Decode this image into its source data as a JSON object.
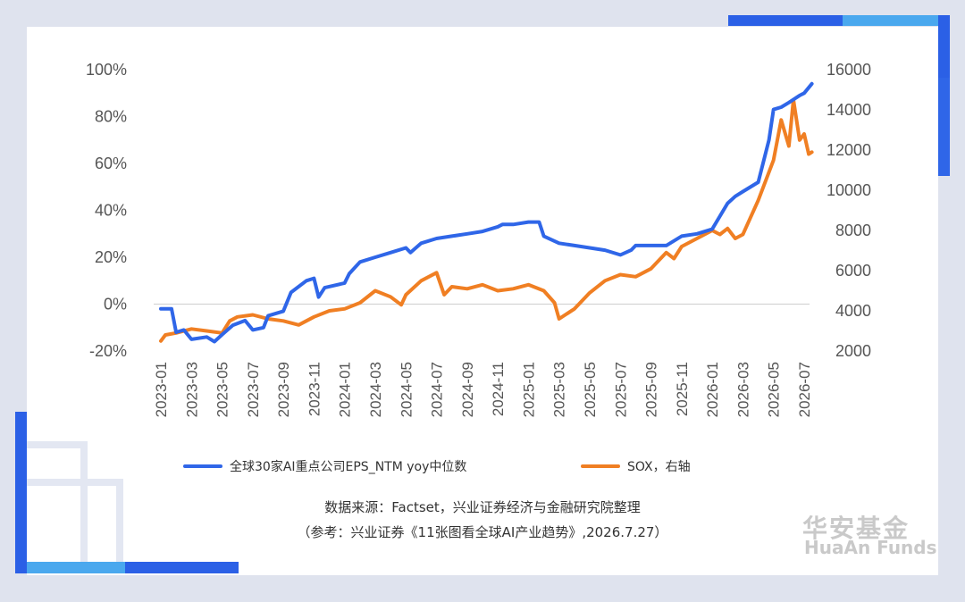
{
  "legend": {
    "series1": "全球30家AI重点公司EPS_NTM yoy中位数",
    "series2": "SOX，右轴"
  },
  "source": {
    "line1": "数据来源：Factset，兴业证券经济与金融研究院整理",
    "line2": "（参考：兴业证券《11张图看全球AI产业趋势》,2026.7.27）"
  },
  "brand": {
    "cn": "华安基金",
    "en": "HuaAn Funds"
  },
  "colors": {
    "series1": "#2f66e8",
    "series2": "#f07f23",
    "accent_dark": "#2b60e6",
    "accent_light": "#4aa8ee"
  },
  "chart_data": {
    "type": "line",
    "x_ticks": [
      "2023-01",
      "2023-03",
      "2023-05",
      "2023-07",
      "2023-09",
      "2023-11",
      "2024-01",
      "2024-03",
      "2024-05",
      "2024-07",
      "2024-09",
      "2024-11",
      "2025-01",
      "2025-03",
      "2025-05",
      "2025-07",
      "2025-09",
      "2025-11",
      "2026-01",
      "2026-03",
      "2026-05",
      "2026-07"
    ],
    "y_left_ticks": [
      "100%",
      "80%",
      "60%",
      "40%",
      "20%",
      "0%",
      "-20%"
    ],
    "y_right_ticks": [
      "16000",
      "14000",
      "12000",
      "10000",
      "8000",
      "6000",
      "4000",
      "2000"
    ],
    "ylim_left": [
      -20,
      100
    ],
    "ylim_right": [
      2000,
      16000
    ],
    "grid": false,
    "legend_position": "bottom",
    "series": [
      {
        "name": "全球30家AI重点公司EPS_NTM yoy中位数",
        "axis": "left",
        "points": [
          [
            "2023-01",
            -2
          ],
          [
            "2023-01.7",
            -2
          ],
          [
            "2023-02",
            -12
          ],
          [
            "2023-02.5",
            -11
          ],
          [
            "2023-03",
            -15
          ],
          [
            "2023-04",
            -14
          ],
          [
            "2023-04.5",
            -16
          ],
          [
            "2023-05",
            -13
          ],
          [
            "2023-05.7",
            -9
          ],
          [
            "2023-06.5",
            -7
          ],
          [
            "2023-07",
            -11
          ],
          [
            "2023-07.7",
            -10
          ],
          [
            "2023-08",
            -5
          ],
          [
            "2023-09",
            -3
          ],
          [
            "2023-09.5",
            5
          ],
          [
            "2023-10.5",
            10
          ],
          [
            "2023-11",
            11
          ],
          [
            "2023-11.3",
            3
          ],
          [
            "2023-11.7",
            7
          ],
          [
            "2024-01",
            9
          ],
          [
            "2024-01.3",
            13
          ],
          [
            "2024-02",
            18
          ],
          [
            "2024-03",
            20
          ],
          [
            "2024-04",
            22
          ],
          [
            "2024-05",
            24
          ],
          [
            "2024-05.3",
            22
          ],
          [
            "2024-06",
            26
          ],
          [
            "2024-07",
            28
          ],
          [
            "2024-08",
            29
          ],
          [
            "2024-09",
            30
          ],
          [
            "2024-10",
            31
          ],
          [
            "2024-11",
            33
          ],
          [
            "2024-11.3",
            34
          ],
          [
            "2024-12",
            34
          ],
          [
            "2025-01",
            35
          ],
          [
            "2025-01.7",
            35
          ],
          [
            "2025-02",
            29
          ],
          [
            "2025-03",
            26
          ],
          [
            "2025-04",
            25
          ],
          [
            "2025-05",
            24
          ],
          [
            "2025-06",
            23
          ],
          [
            "2025-07",
            21
          ],
          [
            "2025-07.7",
            23
          ],
          [
            "2025-08",
            25
          ],
          [
            "2025-09",
            25
          ],
          [
            "2025-10",
            25
          ],
          [
            "2025-11",
            29
          ],
          [
            "2025-12",
            30
          ],
          [
            "2026-01",
            32
          ],
          [
            "2026-02",
            43
          ],
          [
            "2026-02.5",
            46
          ],
          [
            "2026-03",
            48
          ],
          [
            "2026-04",
            52
          ],
          [
            "2026-04.7",
            70
          ],
          [
            "2026-05",
            83
          ],
          [
            "2026-05.5",
            84
          ],
          [
            "2026-06",
            86
          ],
          [
            "2026-06.7",
            89
          ],
          [
            "2026-07",
            90
          ],
          [
            "2026-07.5",
            94
          ]
        ]
      },
      {
        "name": "SOX，右轴",
        "axis": "right",
        "points": [
          [
            "2023-01",
            2500
          ],
          [
            "2023-01.3",
            2800
          ],
          [
            "2023-02",
            2900
          ],
          [
            "2023-03",
            3100
          ],
          [
            "2023-04",
            3000
          ],
          [
            "2023-05",
            2900
          ],
          [
            "2023-05.5",
            3500
          ],
          [
            "2023-06",
            3700
          ],
          [
            "2023-07",
            3800
          ],
          [
            "2023-08",
            3600
          ],
          [
            "2023-09",
            3500
          ],
          [
            "2023-10",
            3300
          ],
          [
            "2023-11",
            3700
          ],
          [
            "2023-12",
            4000
          ],
          [
            "2024-01",
            4100
          ],
          [
            "2024-02",
            4400
          ],
          [
            "2024-03",
            5000
          ],
          [
            "2024-04",
            4700
          ],
          [
            "2024-04.7",
            4300
          ],
          [
            "2024-05",
            4800
          ],
          [
            "2024-06",
            5500
          ],
          [
            "2024-07",
            5900
          ],
          [
            "2024-07.5",
            4800
          ],
          [
            "2024-08",
            5200
          ],
          [
            "2024-09",
            5100
          ],
          [
            "2024-10",
            5300
          ],
          [
            "2024-11",
            5000
          ],
          [
            "2024-12",
            5100
          ],
          [
            "2025-01",
            5300
          ],
          [
            "2025-02",
            5000
          ],
          [
            "2025-02.7",
            4400
          ],
          [
            "2025-03",
            3600
          ],
          [
            "2025-04",
            4100
          ],
          [
            "2025-05",
            4900
          ],
          [
            "2025-06",
            5500
          ],
          [
            "2025-07",
            5800
          ],
          [
            "2025-08",
            5700
          ],
          [
            "2025-09",
            6100
          ],
          [
            "2025-10",
            6900
          ],
          [
            "2025-10.5",
            6600
          ],
          [
            "2025-11",
            7200
          ],
          [
            "2025-12",
            7600
          ],
          [
            "2026-01",
            8000
          ],
          [
            "2026-01.5",
            7800
          ],
          [
            "2026-02",
            8100
          ],
          [
            "2026-02.5",
            7600
          ],
          [
            "2026-03",
            7800
          ],
          [
            "2026-04",
            9500
          ],
          [
            "2026-05",
            11500
          ],
          [
            "2026-05.5",
            13500
          ],
          [
            "2026-06",
            12200
          ],
          [
            "2026-06.3",
            14500
          ],
          [
            "2026-06.7",
            12500
          ],
          [
            "2026-07",
            12800
          ],
          [
            "2026-07.3",
            11800
          ],
          [
            "2026-07.5",
            11900
          ]
        ]
      }
    ]
  }
}
